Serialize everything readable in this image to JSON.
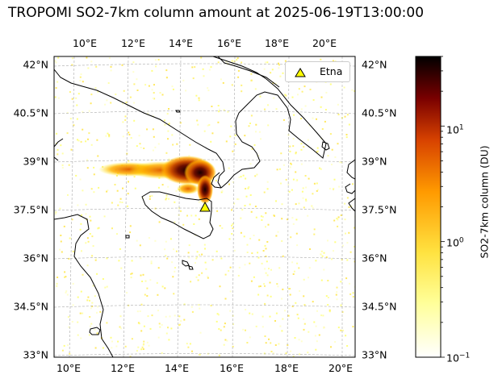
{
  "title": "TROPOMI SO2-7km column amount at 2025-06-19T13:00:00",
  "map": {
    "lon_ticks": [
      "10°E",
      "12°E",
      "14°E",
      "16°E",
      "18°E",
      "20°E"
    ],
    "lat_ticks": [
      "42°N",
      "40.5°N",
      "39°N",
      "37.5°N",
      "36°N",
      "34.5°N",
      "33°N"
    ],
    "gridlines": true,
    "colormap": "afmhot_r",
    "coast_color": "#000000"
  },
  "legend": {
    "position": "top-right",
    "entry": "Etna",
    "marker_color": "#ffff00"
  },
  "volcano": {
    "name": "Etna",
    "lon": 15.0,
    "lat": 37.75
  },
  "colorbar": {
    "label": "SO2-7km column (DU)",
    "scale": "log",
    "range": [
      0.1,
      40
    ],
    "tick_labels": [
      {
        "value": 0.1,
        "text": "10",
        "exp": "−1"
      },
      {
        "value": 1,
        "text": "10",
        "exp": "0"
      },
      {
        "value": 10,
        "text": "10",
        "exp": "1"
      }
    ]
  },
  "chart_data": {
    "type": "heatmap",
    "title": "TROPOMI SO2-7km column amount at 2025-06-19T13:00:00",
    "xlabel": "",
    "ylabel": "",
    "x_ticks": [
      "10°E",
      "12°E",
      "14°E",
      "16°E",
      "18°E",
      "20°E"
    ],
    "y_ticks": [
      "42°N",
      "40.5°N",
      "39°N",
      "37.5°N",
      "36°N",
      "34.5°N",
      "33°N"
    ],
    "colorbar_label": "SO2-7km column (DU)",
    "colorbar_scale": "log",
    "colorbar_range": [
      0.1,
      40
    ],
    "plume": [
      {
        "lon": 13.2,
        "lat": 38.9,
        "du": 2
      },
      {
        "lon": 13.8,
        "lat": 38.95,
        "du": 4
      },
      {
        "lon": 14.3,
        "lat": 38.95,
        "du": 12
      },
      {
        "lon": 14.7,
        "lat": 38.9,
        "du": 25
      },
      {
        "lon": 15.0,
        "lat": 38.7,
        "du": 20
      },
      {
        "lon": 15.1,
        "lat": 38.4,
        "du": 10
      },
      {
        "lon": 15.05,
        "lat": 38.1,
        "du": 6
      }
    ],
    "markers": [
      {
        "name": "Etna",
        "lon": 15.0,
        "lat": 37.75,
        "symbol": "triangle"
      }
    ]
  }
}
